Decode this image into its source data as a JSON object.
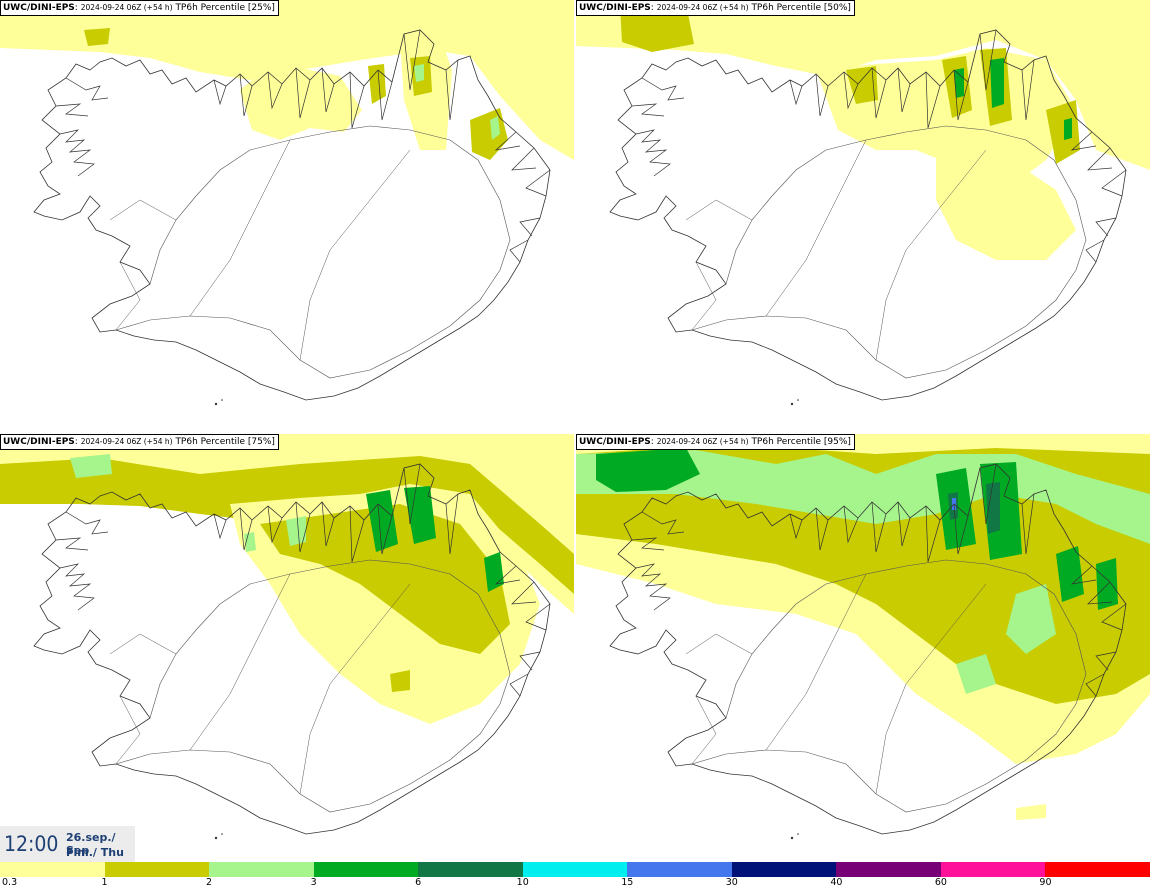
{
  "panels": [
    {
      "source": "UWC/DINI-EPS",
      "run": "2024-09-24 06Z (+54 h)",
      "label": "TP6h Percentile [25%]"
    },
    {
      "source": "UWC/DINI-EPS",
      "run": "2024-09-24 06Z (+54 h)",
      "label": "TP6h Percentile [50%]"
    },
    {
      "source": "UWC/DINI-EPS",
      "run": "2024-09-24 06Z (+54 h)",
      "label": "TP6h Percentile [75%]"
    },
    {
      "source": "UWC/DINI-EPS",
      "run": "2024-09-24 06Z (+54 h)",
      "label": "TP6h Percentile [95%]"
    }
  ],
  "valid_time": {
    "time": "12:00",
    "date": "26.sep./ Sep",
    "day": "Fim./ Thu"
  },
  "legend": {
    "ticks": [
      "0.3",
      "1",
      "2",
      "3",
      "6",
      "10",
      "15",
      "30",
      "40",
      "60",
      "90"
    ],
    "colors": [
      "#ffff99",
      "#c8cc00",
      "#a6f58c",
      "#00aa22",
      "#117744",
      "#00eeee",
      "#4477ee",
      "#001177",
      "#770077",
      "#ff1199",
      "#ff0000"
    ]
  },
  "colors": {
    "background": "#ffffff",
    "coastline": "#333333",
    "date_text": "#1d3f74"
  }
}
